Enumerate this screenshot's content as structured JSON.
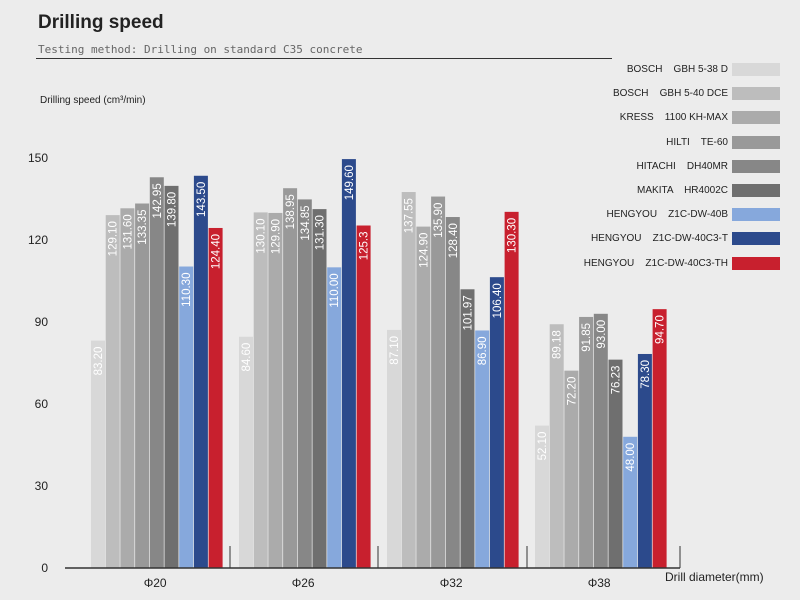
{
  "chart_data": {
    "type": "bar",
    "title": "Drilling speed",
    "subtitle": "Testing method: Drilling on standard  C35 concrete",
    "ylabel": "Drilling speed  (cm³/min)",
    "xlabel": "Drill diameter(mm)",
    "ylim": [
      0,
      150
    ],
    "yticks": [
      0,
      30,
      60,
      90,
      120,
      150
    ],
    "grid": false,
    "legend_position": "top-right",
    "categories": [
      "Φ20",
      "Φ26",
      "Φ32",
      "Φ38"
    ],
    "series": [
      {
        "name": "BOSCH    GBH 5-38 D",
        "color": "#d8d8d8",
        "values": [
          83.2,
          84.6,
          87.1,
          52.1
        ],
        "labels": [
          "83.20",
          "84.60",
          "87.10",
          "52.10"
        ]
      },
      {
        "name": "BOSCH    GBH 5-40 DCE",
        "color": "#bdbdbd",
        "values": [
          129.1,
          130.1,
          137.55,
          89.18
        ],
        "labels": [
          "129.10",
          "130.10",
          "137.55",
          "89.18"
        ]
      },
      {
        "name": "KRESS    1100 KH-MAX",
        "color": "#ababab",
        "values": [
          131.6,
          129.9,
          124.9,
          72.2
        ],
        "labels": [
          "131.60",
          "129.90",
          "124.90",
          "72.20"
        ]
      },
      {
        "name": "HILTI    TE-60",
        "color": "#999999",
        "values": [
          133.35,
          138.95,
          135.9,
          91.85
        ],
        "labels": [
          "133.35",
          "138.95",
          "135.90",
          "91.85"
        ]
      },
      {
        "name": "HITACHI    DH40MR",
        "color": "#878787",
        "values": [
          142.95,
          134.85,
          128.4,
          93.0
        ],
        "labels": [
          "142.95",
          "134.85",
          "128.40",
          "93.00"
        ]
      },
      {
        "name": "MAKITA    HR4002C",
        "color": "#6f6f6f",
        "values": [
          139.8,
          131.3,
          101.97,
          76.23
        ],
        "labels": [
          "139.80",
          "131.30",
          "101.97",
          "76.23"
        ]
      },
      {
        "name": "HENGYOU    Z1C-DW-40B",
        "color": "#86a8dc",
        "values": [
          110.3,
          110.0,
          86.9,
          48.0
        ],
        "labels": [
          "110.30",
          "110.00",
          "86.90",
          "48.00"
        ]
      },
      {
        "name": "HENGYOU    Z1C-DW-40C3-T",
        "color": "#2c4a8c",
        "values": [
          143.5,
          149.6,
          106.4,
          78.3
        ],
        "labels": [
          "143.50",
          "149.60",
          "106.40",
          "78.30"
        ]
      },
      {
        "name": "HENGYOU    Z1C-DW-40C3-TH",
        "color": "#c8202e",
        "values": [
          124.4,
          125.3,
          130.3,
          94.7
        ],
        "labels": [
          "124.40",
          "125.3",
          "130.30",
          "94.70"
        ]
      }
    ]
  }
}
